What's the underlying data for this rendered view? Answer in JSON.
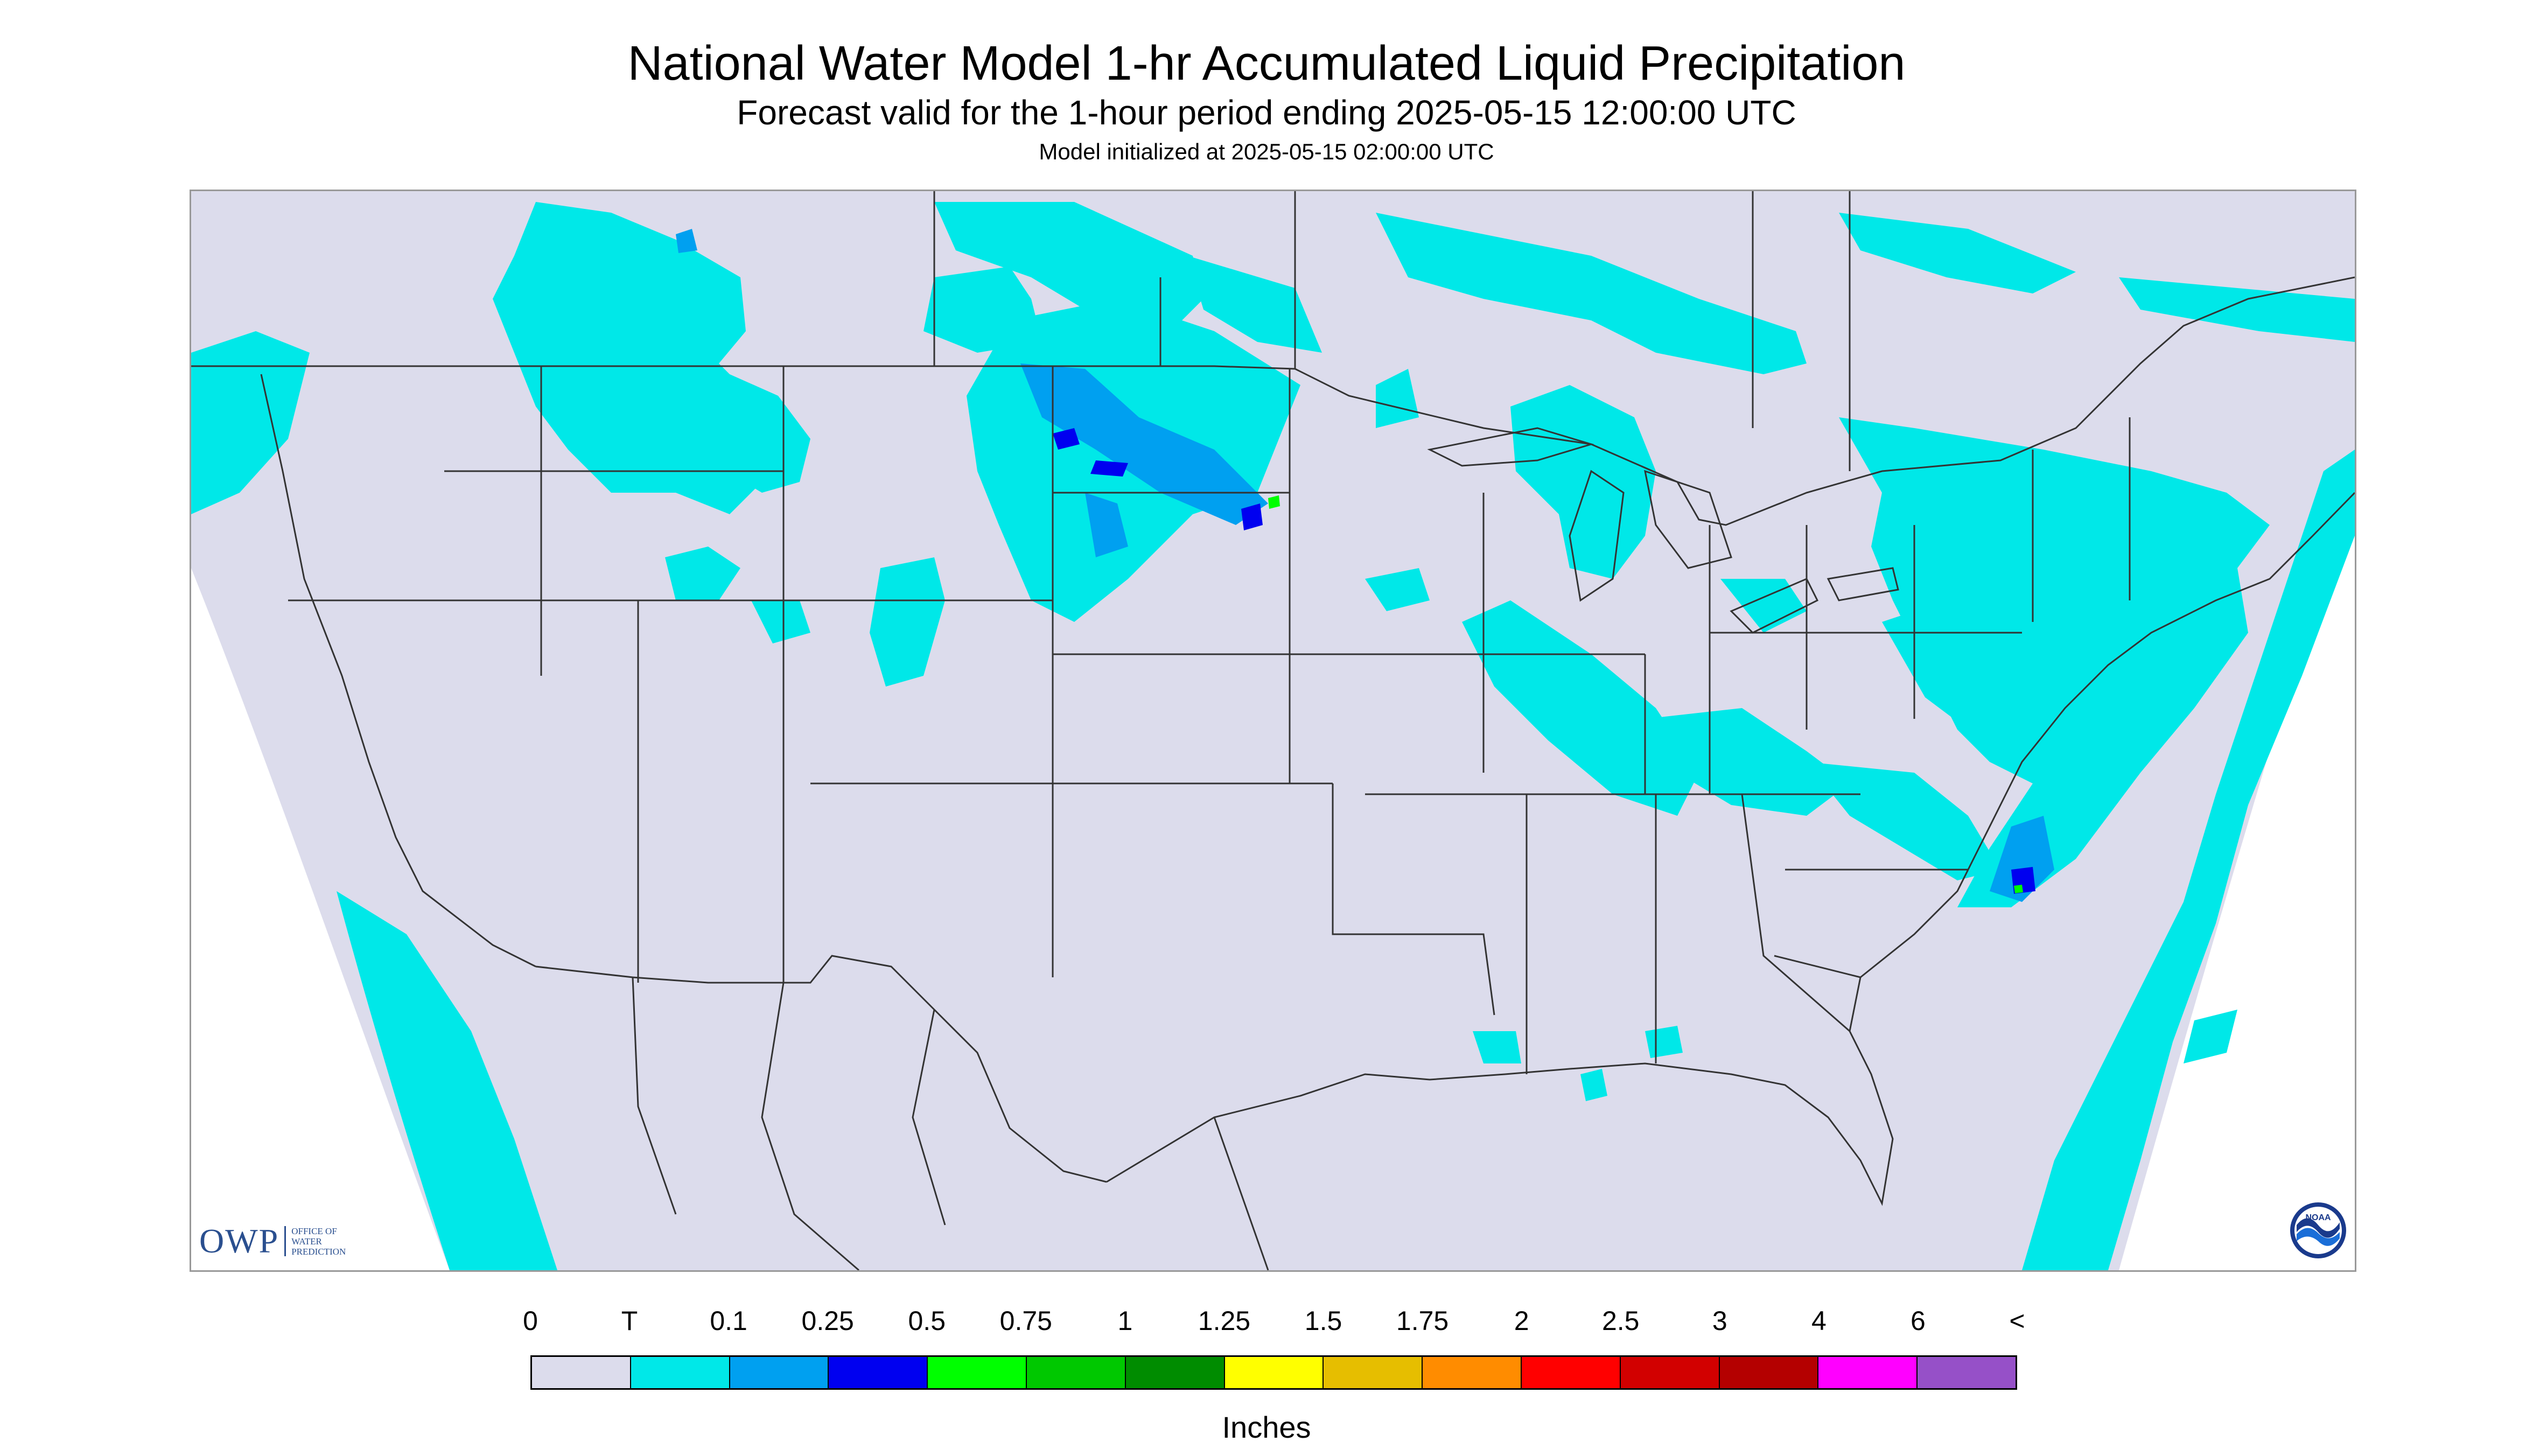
{
  "header": {
    "title": "National Water Model 1-hr Accumulated Liquid Precipitation",
    "subtitle": "Forecast valid for the 1-hour period ending 2025-05-15 12:00:00 UTC",
    "init": "Model initialized at 2025-05-15 02:00:00 UTC"
  },
  "map": {
    "background_color": "#dcdcec",
    "outside_color": "#ffffff",
    "boundary_color": "#333333"
  },
  "legend": {
    "units": "Inches",
    "ticks": [
      "0",
      "T",
      "0.1",
      "0.25",
      "0.5",
      "0.75",
      "1",
      "1.25",
      "1.5",
      "1.75",
      "2",
      "2.5",
      "3",
      "4",
      "6",
      "<"
    ],
    "colors": [
      "#dcdcec",
      "#00e8e8",
      "#00a0f0",
      "#0000f0",
      "#00ff00",
      "#00c800",
      "#008c00",
      "#ffff00",
      "#e6be00",
      "#ff8c00",
      "#ff0000",
      "#d20000",
      "#b40000",
      "#ff00ff",
      "#9650c8"
    ]
  },
  "logos": {
    "owp_big": "OWP",
    "owp_small": [
      "OFFICE OF",
      "WATER",
      "PREDICTION"
    ],
    "noaa": "NOAA"
  }
}
